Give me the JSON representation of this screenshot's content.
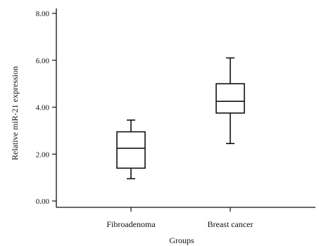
{
  "chart_data": {
    "type": "boxplot",
    "title": "",
    "xlabel": "Groups",
    "ylabel": "Relative miR-21 expression",
    "ylim": [
      0,
      8
    ],
    "yticks": [
      "0.00",
      "2.00",
      "4.00",
      "6.00",
      "8.00"
    ],
    "grid": false,
    "categories": [
      "Fibroadenoma",
      "Breast cancer"
    ],
    "boxes": [
      {
        "category": "Fibroadenoma",
        "whisker_low": 0.95,
        "q1": 1.4,
        "median": 2.25,
        "q3": 2.95,
        "whisker_high": 3.45
      },
      {
        "category": "Breast cancer",
        "whisker_low": 2.45,
        "q1": 3.75,
        "median": 4.25,
        "q3": 5.0,
        "whisker_high": 6.1
      }
    ]
  }
}
